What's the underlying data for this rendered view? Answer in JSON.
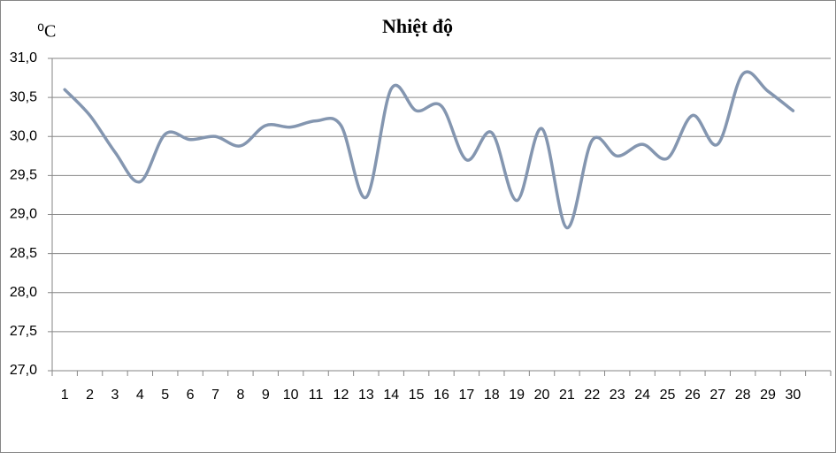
{
  "chart_data": {
    "type": "line",
    "title": "Nhiệt độ",
    "y_label": "⁰C",
    "categories": [
      "1",
      "2",
      "3",
      "4",
      "5",
      "6",
      "7",
      "8",
      "9",
      "10",
      "11",
      "12",
      "13",
      "14",
      "15",
      "16",
      "17",
      "18",
      "19",
      "20",
      "21",
      "22",
      "23",
      "24",
      "25",
      "26",
      "27",
      "28",
      "29",
      "30",
      null
    ],
    "series": [
      {
        "color": "#8496b0",
        "values": [
          30.6,
          30.27,
          29.8,
          29.42,
          30.03,
          29.96,
          30.0,
          29.88,
          30.14,
          30.12,
          30.2,
          30.14,
          29.22,
          30.61,
          30.33,
          30.39,
          29.7,
          30.05,
          29.18,
          30.1,
          28.83,
          29.95,
          29.75,
          29.9,
          29.72,
          30.27,
          29.9,
          30.8,
          30.58,
          30.33,
          null
        ]
      }
    ],
    "ylim": [
      27,
      31
    ],
    "yticks": [
      {
        "value": 27,
        "label": "27,0"
      },
      {
        "value": 27.5,
        "label": "27,5"
      },
      {
        "value": 28,
        "label": "28,0"
      },
      {
        "value": 28.5,
        "label": "28,5"
      },
      {
        "value": 29,
        "label": "29,0"
      },
      {
        "value": 29.5,
        "label": "29,5"
      },
      {
        "value": 30,
        "label": "30,0"
      },
      {
        "value": 30.5,
        "label": "30,5"
      },
      {
        "value": 31,
        "label": "31,0"
      }
    ],
    "grid": true
  }
}
